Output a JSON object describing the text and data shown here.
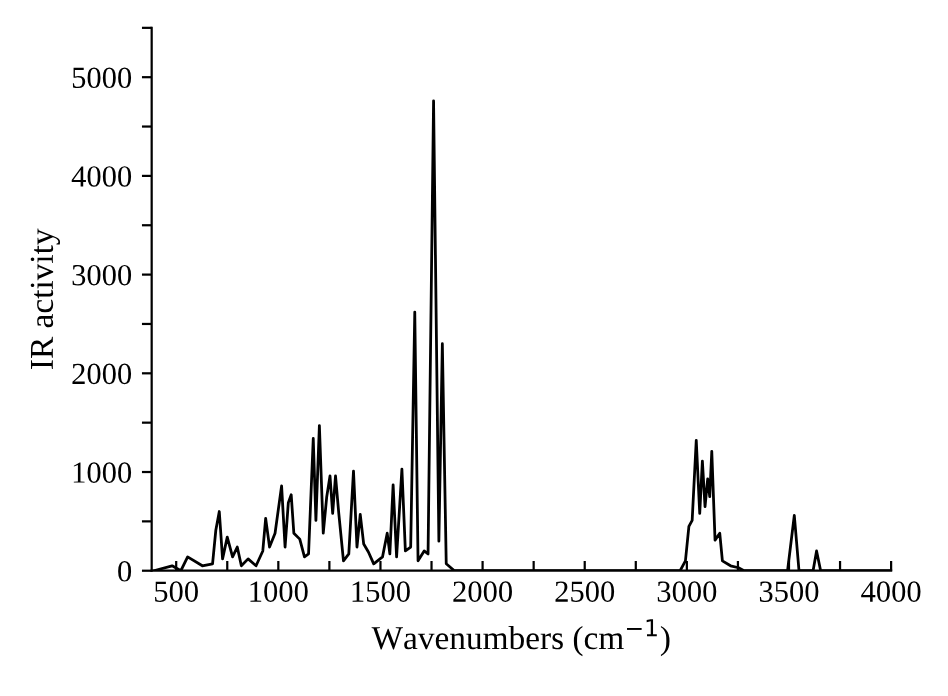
{
  "chart_data": {
    "type": "line",
    "xlabel": "Wavenumbers (cm$^{−1}$)",
    "ylabel": "IR activity",
    "x": [
      390,
      480,
      523,
      556,
      628,
      678,
      694,
      711,
      727,
      750,
      776,
      799,
      819,
      852,
      891,
      924,
      938,
      957,
      984,
      1016,
      1033,
      1049,
      1063,
      1076,
      1105,
      1128,
      1148,
      1171,
      1184,
      1201,
      1220,
      1237,
      1253,
      1266,
      1280,
      1296,
      1319,
      1345,
      1368,
      1385,
      1401,
      1418,
      1441,
      1467,
      1510,
      1533,
      1546,
      1562,
      1579,
      1605,
      1622,
      1648,
      1668,
      1684,
      1714,
      1733,
      1760,
      1786,
      1803,
      1822,
      1862,
      2967,
      2993,
      3010,
      3026,
      3046,
      3063,
      3076,
      3089,
      3102,
      3112,
      3122,
      3138,
      3161,
      3174,
      3214,
      3253,
      3280,
      3493,
      3526,
      3549,
      3618,
      3635,
      3655,
      4000
    ],
    "series": [
      {
        "color": "#000000",
        "values": [
          0,
          50,
          0,
          140,
          50,
          70,
          410,
          600,
          120,
          340,
          140,
          240,
          50,
          120,
          50,
          200,
          530,
          240,
          380,
          860,
          240,
          690,
          770,
          380,
          320,
          140,
          170,
          1340,
          510,
          1470,
          380,
          750,
          960,
          580,
          960,
          580,
          100,
          170,
          1010,
          240,
          570,
          270,
          190,
          70,
          140,
          380,
          170,
          870,
          140,
          1030,
          200,
          240,
          2620,
          100,
          200,
          170,
          4760,
          300,
          2300,
          70,
          0,
          0,
          100,
          450,
          510,
          1320,
          580,
          1110,
          650,
          930,
          750,
          1210,
          310,
          380,
          100,
          50,
          30,
          0,
          0,
          560,
          0,
          0,
          200,
          0,
          0
        ]
      }
    ],
    "xlim": [
      380,
      4000
    ],
    "xticks": [
      500,
      {
        "value": 750,
        "label": null
      },
      1000,
      {
        "value": 1250,
        "label": null
      },
      1500,
      {
        "value": 1750,
        "label": null
      },
      2000,
      {
        "value": 2250,
        "label": null
      },
      2500,
      {
        "value": 2750,
        "label": null
      },
      3000,
      {
        "value": 3250,
        "label": null
      },
      3500,
      {
        "value": 3750,
        "label": null
      },
      4000
    ],
    "ylim": [
      0,
      5500
    ],
    "yticks": [
      0,
      {
        "value": 500,
        "label": null
      },
      1000,
      {
        "value": 1500,
        "label": null
      },
      2000,
      {
        "value": 2500,
        "label": null
      },
      3000,
      {
        "value": 3500,
        "label": null
      },
      4000,
      {
        "value": 4500,
        "label": null
      },
      5000,
      {
        "value": 5500,
        "label": null
      }
    ],
    "grid": false,
    "legend": false,
    "marker": "none",
    "line_style": "solid"
  }
}
